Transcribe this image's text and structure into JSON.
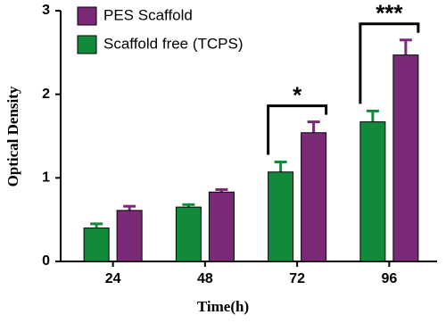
{
  "chart_data": {
    "type": "bar",
    "x_label": "Time(h)",
    "y_label": "Optical Density",
    "categories": [
      "24",
      "48",
      "72",
      "96"
    ],
    "series": [
      {
        "name": "Scaffold free (TCPS)",
        "color": "#118a3c",
        "values": [
          0.4,
          0.65,
          1.07,
          1.67
        ],
        "errors": [
          0.05,
          0.03,
          0.12,
          0.13
        ]
      },
      {
        "name": "PES Scaffold",
        "color": "#7b2a78",
        "values": [
          0.61,
          0.83,
          1.54,
          2.47
        ],
        "errors": [
          0.05,
          0.03,
          0.13,
          0.18
        ]
      }
    ],
    "annotations": [
      "*",
      "***"
    ],
    "ylim": [
      0,
      3
    ],
    "yticks": [
      0,
      1,
      2,
      3
    ]
  }
}
